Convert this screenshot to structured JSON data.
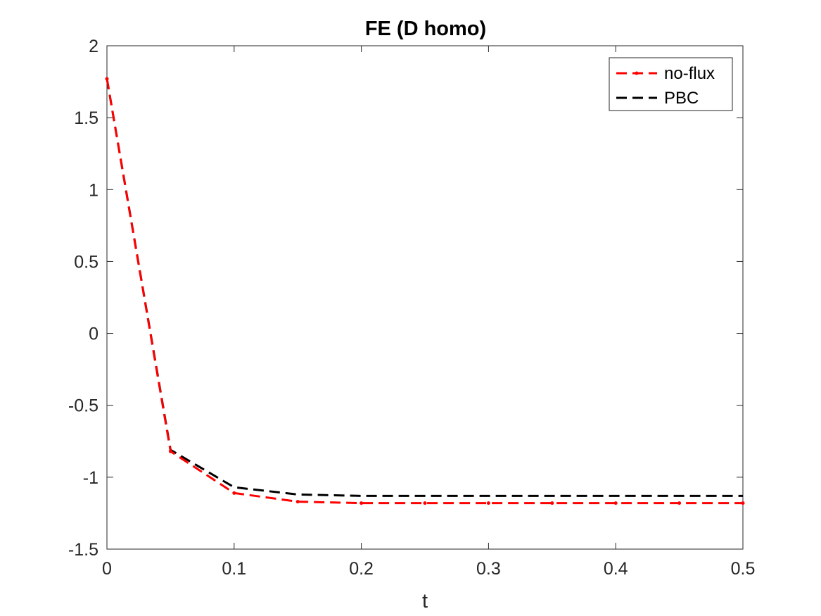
{
  "chart_data": {
    "type": "line",
    "title": "FE (D homo)",
    "xlabel": "t",
    "ylabel": "",
    "xlim": [
      0,
      0.5
    ],
    "ylim": [
      -1.5,
      2
    ],
    "xticks": [
      0,
      0.1,
      0.2,
      0.3,
      0.4,
      0.5
    ],
    "xtick_labels": [
      "0",
      "0.1",
      "0.2",
      "0.3",
      "0.4",
      "0.5"
    ],
    "yticks": [
      -1.5,
      -1,
      -0.5,
      0,
      0.5,
      1,
      1.5,
      2
    ],
    "ytick_labels": [
      "-1.5",
      "-1",
      "-0.5",
      "0",
      "0.5",
      "1",
      "1.5",
      "2"
    ],
    "grid": false,
    "legend_position": "top-right",
    "x": [
      0,
      0.05,
      0.1,
      0.15,
      0.2,
      0.25,
      0.3,
      0.35,
      0.4,
      0.45,
      0.5
    ],
    "series": [
      {
        "name": "no-flux",
        "color": "#ff0000",
        "line_style": "dashed",
        "marker": "dot",
        "values": [
          1.77,
          -0.82,
          -1.11,
          -1.17,
          -1.18,
          -1.18,
          -1.18,
          -1.18,
          -1.18,
          -1.18,
          -1.18
        ]
      },
      {
        "name": "PBC",
        "color": "#000000",
        "line_style": "dashed",
        "marker": "none",
        "values": [
          1.77,
          -0.81,
          -1.07,
          -1.12,
          -1.13,
          -1.13,
          -1.13,
          -1.13,
          -1.13,
          -1.13,
          -1.13
        ]
      }
    ]
  }
}
